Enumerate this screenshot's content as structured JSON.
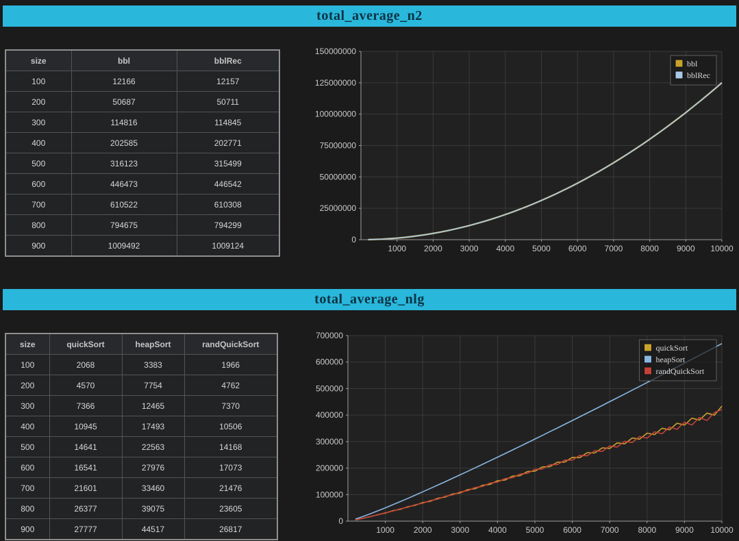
{
  "colors": {
    "banner": "#2ab7dc",
    "banner_text": "#0b3342",
    "gold": "#c9a22b",
    "blue": "#a9c9e8",
    "red": "#c4413a",
    "grid": "#3a3a3a",
    "axis": "#9e9e9e"
  },
  "sections": [
    {
      "title": "total_average_n2",
      "table": {
        "columns": [
          "size",
          "bbl",
          "bblRec"
        ],
        "rows": [
          [
            100,
            12166,
            12157
          ],
          [
            200,
            50687,
            50711
          ],
          [
            300,
            114816,
            114845
          ],
          [
            400,
            202585,
            202771
          ],
          [
            500,
            316123,
            315499
          ],
          [
            600,
            446473,
            446542
          ],
          [
            700,
            610522,
            610308
          ],
          [
            800,
            794675,
            794299
          ],
          [
            900,
            1009492,
            1009124
          ]
        ]
      }
    },
    {
      "title": "total_average_nlg",
      "table": {
        "columns": [
          "size",
          "quickSort",
          "heapSort",
          "randQuickSort"
        ],
        "rows": [
          [
            100,
            2068,
            3383,
            1966
          ],
          [
            200,
            4570,
            7754,
            4762
          ],
          [
            300,
            7366,
            12465,
            7370
          ],
          [
            400,
            10945,
            17493,
            10506
          ],
          [
            500,
            14641,
            22563,
            14168
          ],
          [
            600,
            16541,
            27976,
            17073
          ],
          [
            700,
            21601,
            33460,
            21476
          ],
          [
            800,
            26377,
            39075,
            23605
          ],
          [
            900,
            27777,
            44517,
            26817
          ]
        ]
      }
    }
  ],
  "chart_data": [
    {
      "type": "line",
      "title": "total_average_n2",
      "xlabel": "",
      "ylabel": "",
      "xlim": [
        0,
        10000
      ],
      "ylim": [
        0,
        150000000
      ],
      "xticks": [
        1000,
        2000,
        3000,
        4000,
        5000,
        6000,
        7000,
        8000,
        9000,
        10000
      ],
      "yticks": [
        0,
        25000000,
        50000000,
        75000000,
        100000000,
        125000000,
        150000000
      ],
      "grid": true,
      "legend_position": "top-right",
      "x": [
        200,
        400,
        600,
        800,
        1000,
        1200,
        1400,
        1600,
        1800,
        2000,
        2200,
        2400,
        2600,
        2800,
        3000,
        3200,
        3400,
        3600,
        3800,
        4000,
        4200,
        4400,
        4600,
        4800,
        5000,
        5200,
        5400,
        5600,
        5800,
        6000,
        6200,
        6400,
        6600,
        6800,
        7000,
        7200,
        7400,
        7600,
        7800,
        8000,
        8200,
        8400,
        8600,
        8800,
        9000,
        9200,
        9400,
        9600,
        9800,
        10000
      ],
      "series": [
        {
          "name": "bbl",
          "color": "#c9a22b",
          "width": 2.4,
          "values": [
            50000,
            200000,
            450000,
            800000,
            1250000,
            1800000,
            2450000,
            3200000,
            4050000,
            5000000,
            6050000,
            7200000,
            8450000,
            9800000,
            11250000,
            12800000,
            14450000,
            16200000,
            18050000,
            20000000,
            22050000,
            24200000,
            26450000,
            28800000,
            31250000,
            33800000,
            36450000,
            39200000,
            42050000,
            45000000,
            48050000,
            51200000,
            54450000,
            57800000,
            61250000,
            64800000,
            68450000,
            72200000,
            76050000,
            80000000,
            84050000,
            88200000,
            92450000,
            96800000,
            101250000,
            105800000,
            110450000,
            115200000,
            120050000,
            125000000
          ]
        },
        {
          "name": "bblRec",
          "color": "#a9c9e8",
          "width": 1.7,
          "values": [
            50000,
            200000,
            450000,
            800000,
            1250000,
            1800000,
            2450000,
            3200000,
            4050000,
            5000000,
            6050000,
            7200000,
            8450000,
            9800000,
            11250000,
            12800000,
            14450000,
            16200000,
            18050000,
            20000000,
            22050000,
            24200000,
            26450000,
            28800000,
            31250000,
            33800000,
            36450000,
            39200000,
            42050000,
            45000000,
            48050000,
            51200000,
            54450000,
            57800000,
            61250000,
            64800000,
            68450000,
            72200000,
            76050000,
            80000000,
            84050000,
            88200000,
            92450000,
            96800000,
            101250000,
            105800000,
            110450000,
            115200000,
            120050000,
            125000000
          ]
        }
      ]
    },
    {
      "type": "line",
      "title": "total_average_nlg",
      "xlabel": "",
      "ylabel": "",
      "xlim": [
        0,
        10000
      ],
      "ylim": [
        0,
        700000
      ],
      "xticks": [
        1000,
        2000,
        3000,
        4000,
        5000,
        6000,
        7000,
        8000,
        9000,
        10000
      ],
      "yticks": [
        0,
        100000,
        200000,
        300000,
        400000,
        500000,
        600000,
        700000
      ],
      "grid": true,
      "legend_position": "top-right",
      "x": [
        200,
        400,
        600,
        800,
        1000,
        1200,
        1400,
        1600,
        1800,
        2000,
        2200,
        2400,
        2600,
        2800,
        3000,
        3200,
        3400,
        3600,
        3800,
        4000,
        4200,
        4400,
        4600,
        4800,
        5000,
        5200,
        5400,
        5600,
        5800,
        6000,
        6200,
        6400,
        6600,
        6800,
        7000,
        7200,
        7400,
        7600,
        7800,
        8000,
        8200,
        8400,
        8600,
        8800,
        9000,
        9200,
        9400,
        9600,
        9800,
        10000
      ],
      "series": [
        {
          "name": "quickSort",
          "color": "#c9a22b",
          "width": 1.6,
          "values": [
            4600,
            10900,
            16800,
            24500,
            30500,
            39200,
            44800,
            54300,
            59900,
            70100,
            74900,
            86000,
            90800,
            102300,
            106500,
            118600,
            122400,
            135200,
            138700,
            152400,
            155000,
            169700,
            171500,
            187000,
            188300,
            204600,
            205500,
            222500,
            222900,
            240600,
            239500,
            258400,
            256900,
            276500,
            274200,
            295000,
            291600,
            313500,
            309300,
            332000,
            326500,
            350400,
            344200,
            369300,
            362500,
            388600,
            380900,
            407500,
            399800,
            434000
          ]
        },
        {
          "name": "heapSort",
          "color": "#8ab6e0",
          "width": 1.6,
          "values": [
            7705,
            17426,
            27910,
            38884,
            50227,
            61865,
            73742,
            85833,
            98105,
            110537,
            123107,
            135825,
            148636,
            161608,
            174647,
            187798,
            201032,
            214352,
            227745,
            241226,
            254772,
            268394,
            282083,
            295846,
            309658,
            323521,
            337503,
            351415,
            365518,
            379542,
            393662,
            407857,
            422124,
            436345,
            450631,
            465050,
            479489,
            493849,
            508266,
            522773,
            537321,
            551916,
            566500,
            581145,
            595850,
            610527,
            625318,
            640090,
            654896,
            669700
          ]
        },
        {
          "name": "randQuickSort",
          "color": "#c4413a",
          "width": 1.6,
          "values": [
            4700,
            10400,
            17600,
            23800,
            31700,
            37600,
            46600,
            52300,
            61900,
            67400,
            77800,
            83000,
            93700,
            98900,
            110200,
            114800,
            126700,
            131000,
            143600,
            147200,
            160500,
            163700,
            177800,
            180200,
            195300,
            196900,
            212800,
            213400,
            230500,
            229900,
            248200,
            246500,
            265900,
            263000,
            283700,
            279600,
            301400,
            296200,
            319200,
            312900,
            337100,
            329500,
            355000,
            346200,
            373000,
            363000,
            391100,
            379700,
            409300,
            421000
          ]
        }
      ]
    }
  ]
}
